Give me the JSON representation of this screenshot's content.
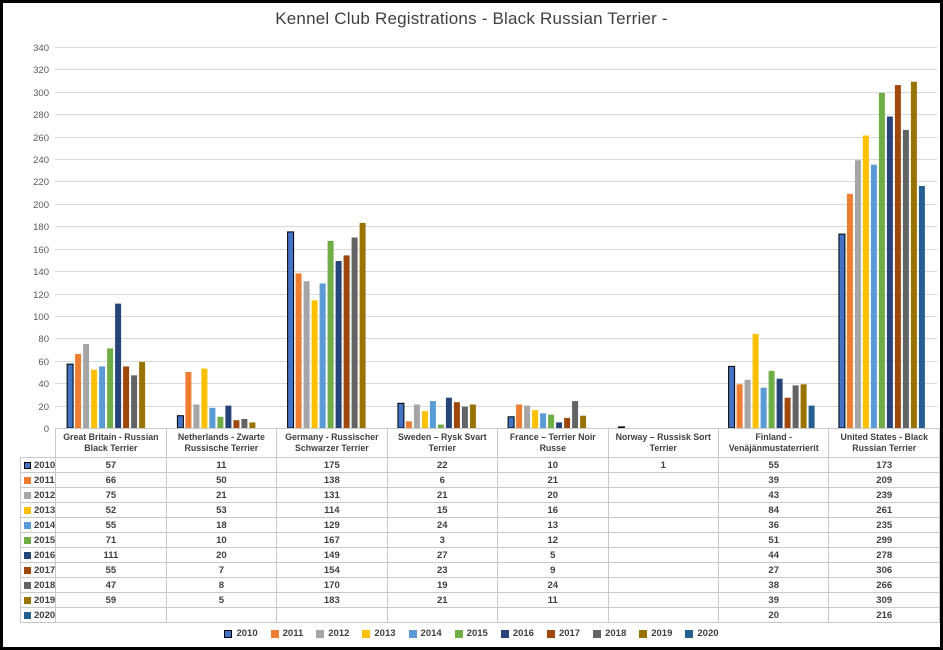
{
  "chart_data": {
    "type": "bar",
    "title": "Kennel Club Registrations - Black Russian Terrier -",
    "xlabel": "",
    "ylabel": "",
    "ylim": [
      0,
      340
    ],
    "ytick_step": 20,
    "yticks": [
      0,
      20,
      40,
      60,
      80,
      100,
      120,
      140,
      160,
      180,
      200,
      220,
      240,
      260,
      280,
      300,
      320,
      340
    ],
    "grid": true,
    "legend_position": "bottom",
    "data_table_shown": true,
    "categories": [
      "Great Britain - Russian Black Terrier",
      "Netherlands - Zwarte Russische Terrier",
      "Germany - Russischer Schwarzer Terrier",
      "Sweden – Rysk Svart Terrier",
      "France – Terrier Noir Russe",
      "Norway – Russisk Sort Terrier",
      "Finland - Venäjänmustaterrierit",
      "United States - Black Russian Terrier"
    ],
    "series": [
      {
        "name": "2010",
        "color": "#4472C4",
        "outlined": true,
        "values": [
          57,
          11,
          175,
          22,
          10,
          1,
          55,
          173
        ]
      },
      {
        "name": "2011",
        "color": "#ED7D31",
        "outlined": false,
        "values": [
          66,
          50,
          138,
          6,
          21,
          null,
          39,
          209
        ]
      },
      {
        "name": "2012",
        "color": "#A5A5A5",
        "outlined": false,
        "values": [
          75,
          21,
          131,
          21,
          20,
          null,
          43,
          239
        ]
      },
      {
        "name": "2013",
        "color": "#FFC000",
        "outlined": false,
        "values": [
          52,
          53,
          114,
          15,
          16,
          null,
          84,
          261
        ]
      },
      {
        "name": "2014",
        "color": "#5B9BD5",
        "outlined": false,
        "values": [
          55,
          18,
          129,
          24,
          13,
          null,
          36,
          235
        ]
      },
      {
        "name": "2015",
        "color": "#70AD47",
        "outlined": false,
        "values": [
          71,
          10,
          167,
          3,
          12,
          null,
          51,
          299
        ]
      },
      {
        "name": "2016",
        "color": "#264478",
        "outlined": false,
        "values": [
          111,
          20,
          149,
          27,
          5,
          null,
          44,
          278
        ]
      },
      {
        "name": "2017",
        "color": "#9E480E",
        "outlined": false,
        "values": [
          55,
          7,
          154,
          23,
          9,
          null,
          27,
          306
        ]
      },
      {
        "name": "2018",
        "color": "#636363",
        "outlined": false,
        "values": [
          47,
          8,
          170,
          19,
          24,
          null,
          38,
          266
        ]
      },
      {
        "name": "2019",
        "color": "#997300",
        "outlined": false,
        "values": [
          59,
          5,
          183,
          21,
          11,
          null,
          39,
          309
        ]
      },
      {
        "name": "2020",
        "color": "#255E91",
        "outlined": false,
        "values": [
          null,
          null,
          null,
          null,
          null,
          null,
          20,
          216
        ]
      }
    ],
    "colors": {
      "gridline": "#D9D9D9",
      "tick_label": "#595959",
      "title_text": "#404040",
      "table_text": "#3F3F3F",
      "table_border": "#C9C9C9",
      "selected_outline": "#000000",
      "frame_border": "#000000",
      "background": "#FFFFFF"
    }
  }
}
